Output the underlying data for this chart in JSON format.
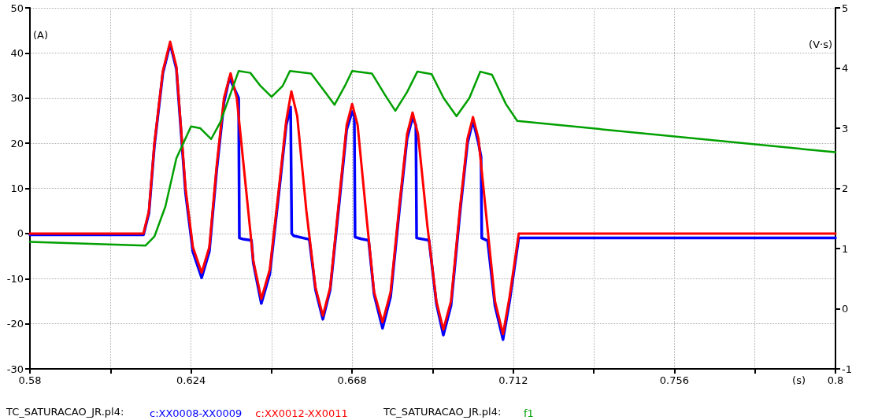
{
  "chart_data": {
    "type": "line",
    "xlabel": "(s)",
    "ylabel": "(A)",
    "y2label": "(V·s)",
    "annotations": [
      "TC_SATURACAO_JR.pl4:",
      "TC_SATURACAO_JR.pl4:"
    ],
    "xlim": [
      0.58,
      0.8
    ],
    "xticks": [
      0.58,
      {
        "value": 0.602,
        "label": null
      },
      0.624,
      {
        "value": 0.646,
        "label": null
      },
      0.668,
      {
        "value": 0.69,
        "label": null
      },
      0.712,
      {
        "value": 0.734,
        "label": null
      },
      0.756,
      {
        "value": 0.778,
        "label": null
      },
      0.8
    ],
    "ylim": [
      -30,
      50
    ],
    "yticks": [
      -30,
      -20,
      -10,
      0,
      10,
      20,
      30,
      40,
      50
    ],
    "y2lim": [
      -1,
      5
    ],
    "y2ticks": [
      -1,
      0,
      1,
      2,
      3,
      4,
      5
    ],
    "grid": true,
    "legend": "bottom",
    "marker": "none",
    "line_style": "solid",
    "series": [
      {
        "name": "c:XX0008-XX0009",
        "color": "#0000ff",
        "x": [
          0.58,
          0.611,
          0.6125,
          0.614,
          0.6163,
          0.6183,
          0.62,
          0.6225,
          0.6245,
          0.6269,
          0.629,
          0.631,
          0.633,
          0.6345,
          0.637,
          0.6372,
          0.6385,
          0.6405,
          0.641,
          0.6432,
          0.6455,
          0.648,
          0.65,
          0.6512,
          0.6515,
          0.652,
          0.6563,
          0.658,
          0.66,
          0.662,
          0.6645,
          0.6665,
          0.668,
          0.6686,
          0.6688,
          0.6705,
          0.6725,
          0.674,
          0.6763,
          0.6785,
          0.681,
          0.683,
          0.6845,
          0.6854,
          0.6856,
          0.689,
          0.691,
          0.6929,
          0.695,
          0.6975,
          0.6995,
          0.701,
          0.7025,
          0.7032,
          0.7034,
          0.705,
          0.707,
          0.7092,
          0.711,
          0.7135,
          0.8
        ],
        "values": [
          -0.3,
          -0.3,
          4.5,
          19.5,
          35.5,
          42,
          36.5,
          9,
          -4,
          -9.8,
          -4,
          14,
          29,
          34.5,
          30,
          -1,
          -1.3,
          -1.5,
          -6.5,
          -15.5,
          -9,
          9,
          24,
          28,
          0,
          -0.5,
          -1.3,
          -12.5,
          -19,
          -12.5,
          7,
          23,
          27,
          26,
          -0.8,
          -1.2,
          -1.5,
          -13.5,
          -21,
          -14,
          6,
          21,
          25.7,
          24,
          -1,
          -1.5,
          -15.5,
          -22.5,
          -16,
          5,
          20,
          25,
          20,
          17,
          -1,
          -1.6,
          -16,
          -23.5,
          -15,
          -1,
          -1
        ]
      },
      {
        "name": "c:XX0012-XX0011",
        "color": "#ff0000",
        "x": [
          0.58,
          0.611,
          0.6125,
          0.614,
          0.6163,
          0.6183,
          0.62,
          0.6225,
          0.6245,
          0.6269,
          0.629,
          0.631,
          0.633,
          0.6348,
          0.6365,
          0.639,
          0.641,
          0.6432,
          0.6455,
          0.648,
          0.65,
          0.6514,
          0.653,
          0.6555,
          0.658,
          0.66,
          0.662,
          0.6645,
          0.6665,
          0.668,
          0.6695,
          0.672,
          0.674,
          0.6763,
          0.6785,
          0.681,
          0.683,
          0.6845,
          0.686,
          0.6885,
          0.691,
          0.6929,
          0.695,
          0.6975,
          0.6995,
          0.701,
          0.7025,
          0.705,
          0.707,
          0.7092,
          0.711,
          0.7135,
          0.8
        ],
        "values": [
          0,
          0,
          5,
          20,
          36,
          42.5,
          37,
          10,
          -3,
          -8.7,
          -3,
          15,
          30,
          35.5,
          30,
          10,
          -6,
          -14.5,
          -8,
          10,
          25,
          31.5,
          26,
          5,
          -12,
          -18.2,
          -12,
          8,
          24,
          28.7,
          24,
          3,
          -13,
          -19.7,
          -13,
          7,
          22,
          26.8,
          22,
          2,
          -15,
          -21.3,
          -15,
          6,
          21,
          25.8,
          21,
          1,
          -15,
          -22.3,
          -14,
          0,
          0
        ]
      },
      {
        "name": "f1",
        "color": "#00a000",
        "axis": "y2",
        "x": [
          0.58,
          0.6116,
          0.614,
          0.617,
          0.62,
          0.624,
          0.6265,
          0.6295,
          0.632,
          0.637,
          0.6402,
          0.643,
          0.646,
          0.649,
          0.651,
          0.6568,
          0.66,
          0.6632,
          0.666,
          0.668,
          0.6734,
          0.677,
          0.6798,
          0.683,
          0.6858,
          0.6897,
          0.693,
          0.6965,
          0.7,
          0.703,
          0.7062,
          0.71,
          0.7131,
          0.8
        ],
        "values": [
          1.11,
          1.05,
          1.2,
          1.7,
          2.5,
          3.03,
          3.0,
          2.82,
          3.1,
          3.95,
          3.92,
          3.7,
          3.52,
          3.7,
          3.95,
          3.91,
          3.65,
          3.39,
          3.7,
          3.95,
          3.91,
          3.55,
          3.29,
          3.6,
          3.94,
          3.9,
          3.5,
          3.2,
          3.5,
          3.94,
          3.89,
          3.4,
          3.12,
          2.6
        ]
      }
    ]
  }
}
